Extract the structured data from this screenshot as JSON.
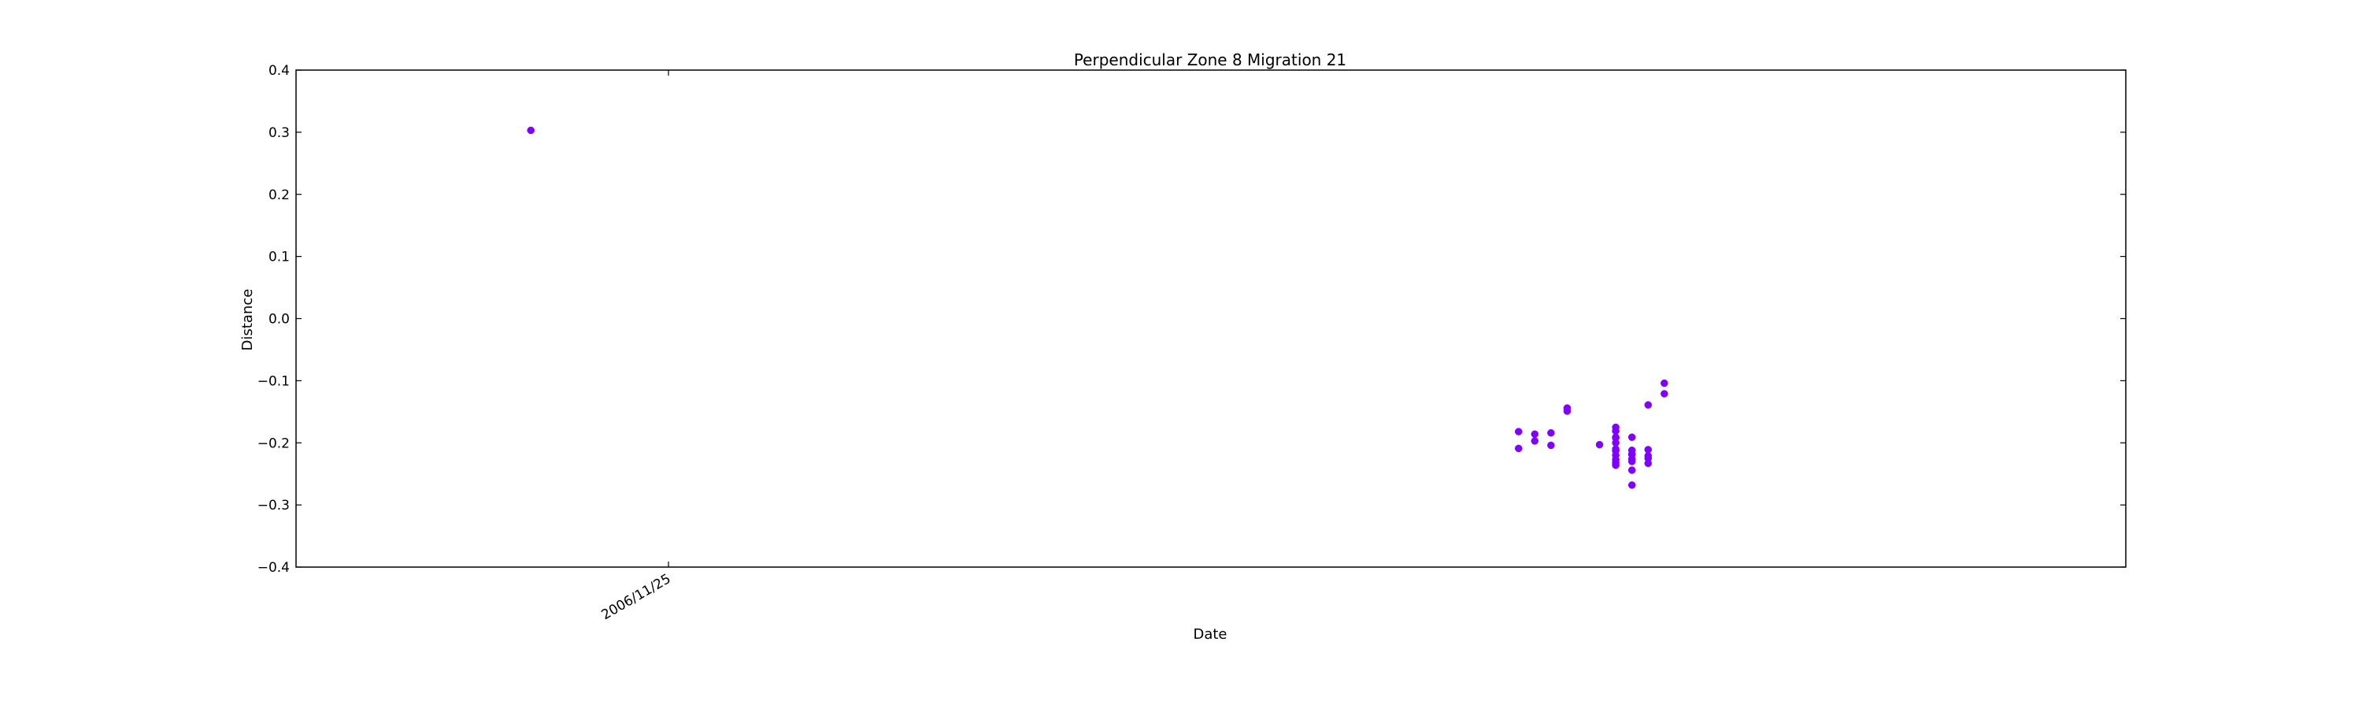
{
  "chart_data": {
    "type": "scatter",
    "title": "Perpendicular Zone 8 Migration 21",
    "xlabel": "Date",
    "ylabel": "Distance",
    "ylim": [
      -0.4,
      0.4
    ],
    "yticks": [
      0.4,
      0.3,
      0.2,
      0.1,
      0.0,
      -0.1,
      -0.2,
      -0.3,
      -0.4
    ],
    "ytick_labels": [
      "0.4",
      "0.3",
      "0.2",
      "0.1",
      "0.0",
      "−0.1",
      "−0.2",
      "−0.3",
      "−0.4"
    ],
    "xlim": [
      "2006-11-02",
      "2007-02-23"
    ],
    "xticks": [
      "2006-11-25"
    ],
    "xtick_labels": [
      "2006/11/25"
    ],
    "grid": false,
    "marker_color": "#7f00ff",
    "points": [
      {
        "x": "2006-11-16",
        "y": 0.303
      },
      {
        "x": "2007-01-16",
        "y": -0.182
      },
      {
        "x": "2007-01-16",
        "y": -0.209
      },
      {
        "x": "2007-01-17",
        "y": -0.197
      },
      {
        "x": "2007-01-18",
        "y": -0.184
      },
      {
        "x": "2007-01-17",
        "y": -0.186
      },
      {
        "x": "2007-01-18",
        "y": -0.204
      },
      {
        "x": "2007-01-19",
        "y": -0.149
      },
      {
        "x": "2007-01-19",
        "y": -0.144
      },
      {
        "x": "2007-01-21",
        "y": -0.203
      },
      {
        "x": "2007-01-22",
        "y": -0.191
      },
      {
        "x": "2007-01-22",
        "y": -0.192
      },
      {
        "x": "2007-01-22",
        "y": -0.175
      },
      {
        "x": "2007-01-22",
        "y": -0.181
      },
      {
        "x": "2007-01-22",
        "y": -0.2
      },
      {
        "x": "2007-01-22",
        "y": -0.21
      },
      {
        "x": "2007-01-22",
        "y": -0.213
      },
      {
        "x": "2007-01-22",
        "y": -0.22
      },
      {
        "x": "2007-01-22",
        "y": -0.227
      },
      {
        "x": "2007-01-22",
        "y": -0.232
      },
      {
        "x": "2007-01-22",
        "y": -0.236
      },
      {
        "x": "2007-01-23",
        "y": -0.218
      },
      {
        "x": "2007-01-23",
        "y": -0.226
      },
      {
        "x": "2007-01-23",
        "y": -0.268
      },
      {
        "x": "2007-01-23",
        "y": -0.23
      },
      {
        "x": "2007-01-23",
        "y": -0.191
      },
      {
        "x": "2007-01-23",
        "y": -0.212
      },
      {
        "x": "2007-01-23",
        "y": -0.219
      },
      {
        "x": "2007-01-23",
        "y": -0.244
      },
      {
        "x": "2007-01-24",
        "y": -0.221
      },
      {
        "x": "2007-01-24",
        "y": -0.211
      },
      {
        "x": "2007-01-24",
        "y": -0.225
      },
      {
        "x": "2007-01-24",
        "y": -0.233
      },
      {
        "x": "2007-01-24",
        "y": -0.139
      },
      {
        "x": "2007-01-25",
        "y": -0.104
      },
      {
        "x": "2007-01-25",
        "y": -0.121
      }
    ]
  }
}
